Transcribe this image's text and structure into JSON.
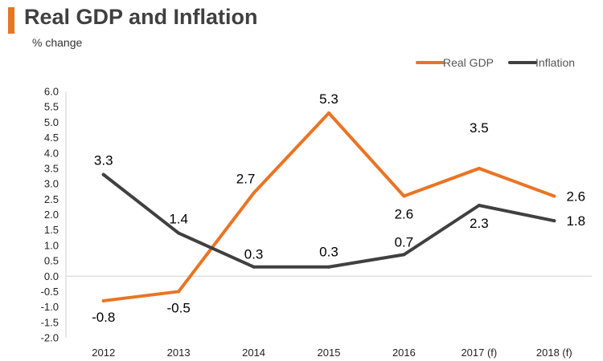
{
  "header": {
    "title": "Real GDP and Inflation",
    "subtitle": "% change",
    "accent_color": "#E97424"
  },
  "chart_data": {
    "type": "line",
    "title": "Real GDP and Inflation",
    "subtitle": "% change",
    "xlabel": "",
    "ylabel": "",
    "categories": [
      "2012",
      "2013",
      "2014",
      "2015",
      "2016",
      "2017 (f)",
      "2018 (f)"
    ],
    "y_ticks": [
      "6.0",
      "5.5",
      "5.0",
      "4.5",
      "4.0",
      "3.5",
      "3.0",
      "2.5",
      "2.0",
      "1.5",
      "1.0",
      "0.5",
      "0.0",
      "-0.5",
      "-1.0",
      "-1.5",
      "-2.0"
    ],
    "ylim": [
      -2.0,
      6.0
    ],
    "grid": false,
    "legend_position": "top-right",
    "series": [
      {
        "name": "Real GDP",
        "color": "#E97424",
        "values": [
          -0.8,
          -0.5,
          2.7,
          5.3,
          2.6,
          3.5,
          2.6
        ],
        "labels": [
          "-0.8",
          "-0.5",
          "2.7",
          "5.3",
          "2.6",
          "3.5",
          "2.6"
        ]
      },
      {
        "name": "Inflation",
        "color": "#404040",
        "values": [
          3.3,
          1.4,
          0.3,
          0.3,
          0.7,
          2.3,
          1.8
        ],
        "labels": [
          "3.3",
          "1.4",
          "0.3",
          "0.3",
          "0.7",
          "2.3",
          "1.8"
        ]
      }
    ]
  }
}
